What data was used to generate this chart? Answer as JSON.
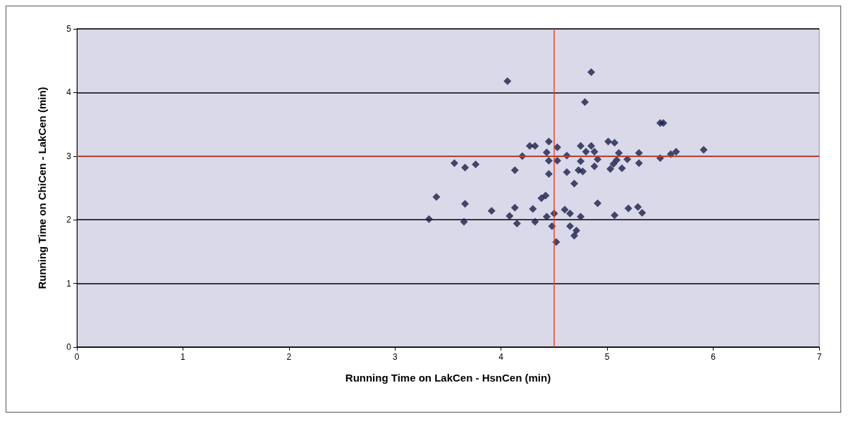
{
  "chart_data": {
    "type": "scatter",
    "xlabel": "Running Time on LakCen - HsnCen (min)",
    "ylabel": "Running Time on ChiCen - LakCen (min)",
    "xlim": [
      0,
      7
    ],
    "xticks": [
      0,
      1,
      2,
      3,
      4,
      5,
      6,
      7
    ],
    "ylim": [
      0,
      5
    ],
    "yticks": [
      0,
      1,
      2,
      3,
      4,
      5
    ],
    "grid": "y",
    "marker": "diamond",
    "ref_lines": [
      {
        "axis": "x",
        "value": 4.5,
        "color": "#e8432a"
      },
      {
        "axis": "y",
        "value": 3,
        "color": "#e8432a"
      }
    ],
    "series": [
      {
        "color": "#1c1f4a",
        "x": [
          4.06,
          4.27,
          4.32,
          4.45,
          4.53,
          4.43,
          4.2,
          4.45,
          4.53,
          3.56,
          3.66,
          3.76,
          4.13,
          4.45,
          3.39,
          3.66,
          3.91,
          4.13,
          4.3,
          4.38,
          4.42,
          3.32,
          3.65,
          4.08,
          4.15,
          4.32,
          4.43,
          4.5,
          4.48,
          4.52,
          4.85,
          4.79,
          5.53,
          5.5,
          5.01,
          5.07,
          4.75,
          4.85,
          4.8,
          4.88,
          4.62,
          5.11,
          5.3,
          5.65,
          5.6,
          5.91,
          5.5,
          4.91,
          4.75,
          5.09,
          5.19,
          4.88,
          5.06,
          5.3,
          5.03,
          5.14,
          4.73,
          4.77,
          4.62,
          4.69,
          4.91,
          4.6,
          4.65,
          4.75,
          5.07,
          5.2,
          5.29,
          5.33,
          4.65,
          4.71,
          4.69
        ],
        "values": [
          4.18,
          3.16,
          3.16,
          3.23,
          3.14,
          3.06,
          3.0,
          2.93,
          2.93,
          2.89,
          2.82,
          2.87,
          2.78,
          2.72,
          2.36,
          2.25,
          2.14,
          2.19,
          2.17,
          2.34,
          2.38,
          2.01,
          1.97,
          2.06,
          1.94,
          1.97,
          2.05,
          2.1,
          1.9,
          1.65,
          4.32,
          3.85,
          3.52,
          3.52,
          3.23,
          3.21,
          3.16,
          3.16,
          3.07,
          3.07,
          3.01,
          3.05,
          3.05,
          3.07,
          3.03,
          3.1,
          2.97,
          2.95,
          2.92,
          2.94,
          2.95,
          2.84,
          2.88,
          2.89,
          2.8,
          2.81,
          2.78,
          2.76,
          2.75,
          2.57,
          2.26,
          2.16,
          2.1,
          2.05,
          2.07,
          2.18,
          2.2,
          2.11,
          1.9,
          1.83,
          1.75
        ]
      }
    ]
  }
}
